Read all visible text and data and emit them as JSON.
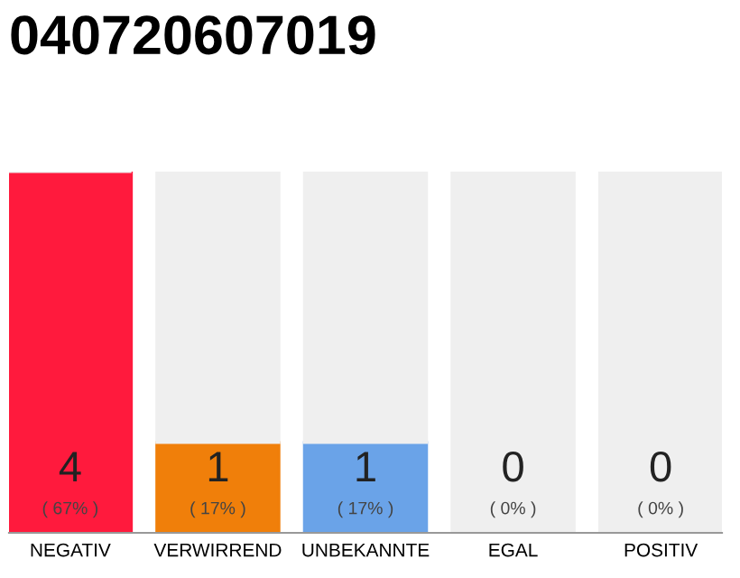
{
  "chart_data": {
    "type": "bar",
    "title": "040720607019",
    "categories": [
      "NEGATIV",
      "VERWIRREND",
      "UNBEKANNTE",
      "EGAL",
      "POSITIV"
    ],
    "stacked": true,
    "ylim": [
      0,
      4
    ],
    "tick_labels": "x",
    "grid": false,
    "legend": false,
    "series": [
      {
        "colors": [
          "#ff1a3d",
          "#f07f0a",
          "#6aa3e8",
          "#efefef",
          "#efefef"
        ],
        "values": [
          4,
          1,
          1,
          0,
          0
        ],
        "value_labels": [
          "4\n( 67% )",
          "1\n( 17% )",
          "1\n( 17% )",
          "0\n( 0% )",
          "0\n( 0% )"
        ]
      },
      {
        "color": "#efefef",
        "values": [
          0,
          3,
          3,
          4,
          4
        ]
      }
    ]
  }
}
